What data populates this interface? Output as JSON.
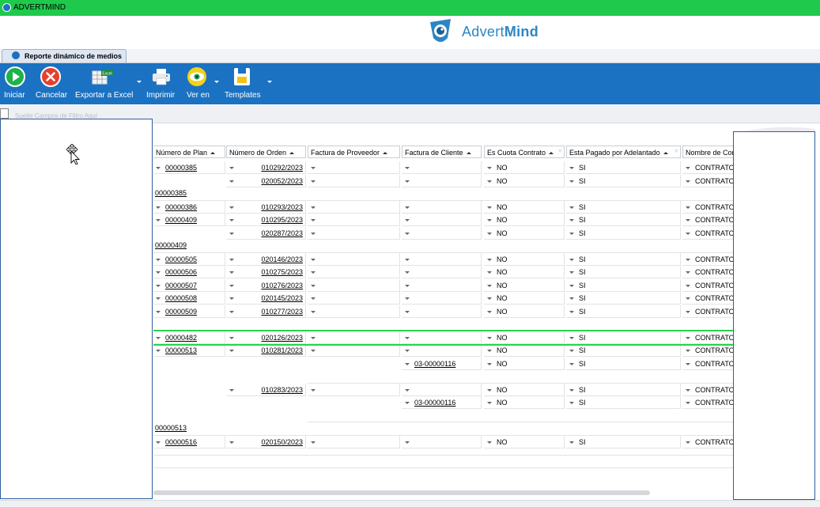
{
  "app": {
    "title": "ADVERTMIND"
  },
  "brand": {
    "name_light": "Advert",
    "name_bold": "Mind"
  },
  "tab": {
    "label": "Reporte dinámico de medios"
  },
  "toolbar": {
    "iniciar": "Iniciar",
    "cancelar": "Cancelar",
    "exportar": "Exportar a Excel",
    "imprimir": "Imprimir",
    "ver_en": "Ver en",
    "templates": "Templates",
    "excel_badge": "Excel"
  },
  "filter": {
    "placeholder": "Suelte Campos de Filtro Aquí"
  },
  "grid": {
    "columns": [
      "Número de Plan",
      "Número de Orden",
      "Factura de Proveedor",
      "Factura de Cliente",
      "Es Cuota Contrato",
      "Esta Pagado por Adelantado",
      "Nombre de Con"
    ],
    "rows": [
      {
        "plan": "00000385",
        "orden": "010292/2023",
        "factura_cliente": "",
        "cuota": "NO",
        "pagado": "SI",
        "nombre": "CONTRATO"
      },
      {
        "plan": "",
        "orden": "020052/2023",
        "factura_cliente": "",
        "cuota": "NO",
        "pagado": "SI",
        "nombre": "CONTRATO"
      },
      {
        "group": "00000385"
      },
      {
        "plan": "00000386",
        "orden": "010293/2023",
        "factura_cliente": "",
        "cuota": "NO",
        "pagado": "SI",
        "nombre": "CONTRATO"
      },
      {
        "plan": "00000409",
        "orden": "010295/2023",
        "factura_cliente": "",
        "cuota": "NO",
        "pagado": "SI",
        "nombre": "CONTRATO"
      },
      {
        "plan": "",
        "orden": "020287/2023",
        "factura_cliente": "",
        "cuota": "NO",
        "pagado": "SI",
        "nombre": "CONTRATO"
      },
      {
        "group": "00000409"
      },
      {
        "plan": "00000505",
        "orden": "020146/2023",
        "factura_cliente": "",
        "cuota": "NO",
        "pagado": "SI",
        "nombre": "CONTRATO"
      },
      {
        "plan": "00000506",
        "orden": "010275/2023",
        "factura_cliente": "",
        "cuota": "NO",
        "pagado": "SI",
        "nombre": "CONTRATO"
      },
      {
        "plan": "00000507",
        "orden": "010276/2023",
        "factura_cliente": "",
        "cuota": "NO",
        "pagado": "SI",
        "nombre": "CONTRATO"
      },
      {
        "plan": "00000508",
        "orden": "020145/2023",
        "factura_cliente": "",
        "cuota": "NO",
        "pagado": "SI",
        "nombre": "CONTRATO"
      },
      {
        "plan": "00000509",
        "orden": "010277/2023",
        "factura_cliente": "",
        "cuota": "NO",
        "pagado": "SI",
        "nombre": "CONTRATO"
      },
      {
        "blank": true
      },
      {
        "plan": "00000482",
        "orden": "020126/2023",
        "factura_cliente": "",
        "cuota": "NO",
        "pagado": "SI",
        "nombre": "CONTRATO"
      },
      {
        "plan": "00000513",
        "orden": "010281/2023",
        "factura_cliente": "",
        "cuota": "NO",
        "pagado": "SI",
        "nombre": "CONTRATO"
      },
      {
        "plan": "",
        "orden": "",
        "factura_cliente": "03-00000116",
        "cuota": "NO",
        "pagado": "SI",
        "nombre": "CONTRATO"
      },
      {
        "blank": true
      },
      {
        "plan": "",
        "orden": "010283/2023",
        "factura_cliente": "",
        "cuota": "NO",
        "pagado": "SI",
        "nombre": "CONTRATO"
      },
      {
        "plan": "",
        "orden": "",
        "factura_cliente": "03-00000116",
        "cuota": "NO",
        "pagado": "SI",
        "nombre": "CONTRATO"
      },
      {
        "blank": true
      },
      {
        "group": "00000513"
      },
      {
        "plan": "00000516",
        "orden": "020150/2023",
        "factura_cliente": "",
        "cuota": "NO",
        "pagado": "SI",
        "nombre": "CONTRATO"
      }
    ]
  },
  "colors": {
    "ribbon": "#1b72c2",
    "titlebar": "#1ec94c",
    "highlight": "#27d44a"
  }
}
